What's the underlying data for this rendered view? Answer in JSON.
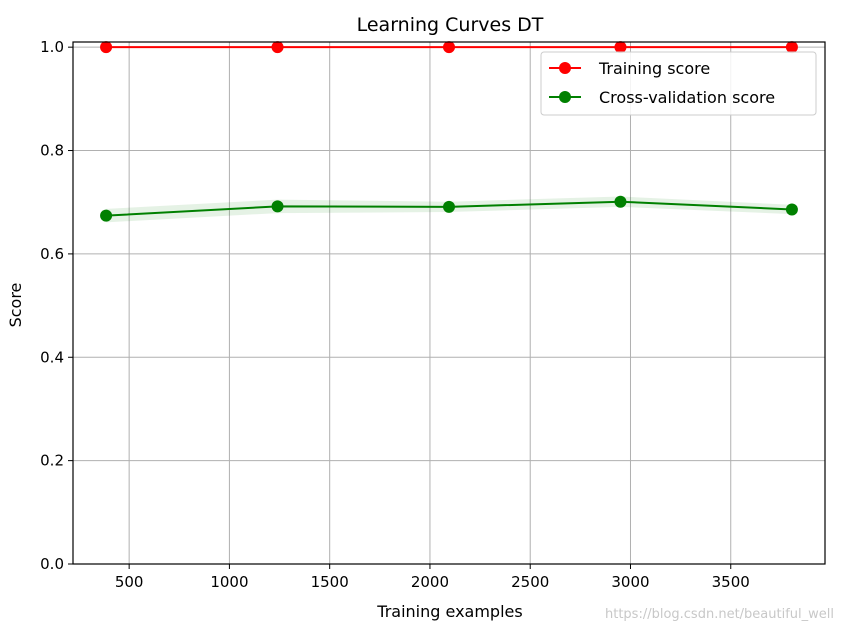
{
  "chart_data": {
    "type": "line",
    "title": "Learning Curves DT",
    "xlabel": "Training examples",
    "ylabel": "Score",
    "x": [
      385,
      1240,
      2095,
      2950,
      3805
    ],
    "xlim": [
      220,
      3970
    ],
    "ylim": [
      0.0,
      1.01
    ],
    "xticks": [
      500,
      1000,
      1500,
      2000,
      2500,
      3000,
      3500
    ],
    "yticks": [
      0.0,
      0.2,
      0.4,
      0.6,
      0.8,
      1.0
    ],
    "xtick_labels": [
      "500",
      "1000",
      "1500",
      "2000",
      "2500",
      "3000",
      "3500"
    ],
    "ytick_labels": [
      "0.0",
      "0.2",
      "0.4",
      "0.6",
      "0.8",
      "1.0"
    ],
    "grid": true,
    "legend_position": "top-right",
    "series": [
      {
        "name": "Training score",
        "color": "#ff0000",
        "values": [
          1.0,
          1.0,
          1.0,
          1.0,
          1.0
        ],
        "band": [
          [
            1.0,
            1.0
          ],
          [
            1.0,
            1.0
          ],
          [
            1.0,
            1.0
          ],
          [
            1.0,
            1.0
          ],
          [
            1.0,
            1.0
          ]
        ]
      },
      {
        "name": "Cross-validation score",
        "color": "#008000",
        "values": [
          0.674,
          0.692,
          0.691,
          0.701,
          0.686
        ],
        "band": [
          [
            0.661,
            0.687
          ],
          [
            0.679,
            0.705
          ],
          [
            0.681,
            0.701
          ],
          [
            0.691,
            0.711
          ],
          [
            0.677,
            0.695
          ]
        ]
      }
    ]
  },
  "watermark": "https://blog.csdn.net/beautiful_well"
}
